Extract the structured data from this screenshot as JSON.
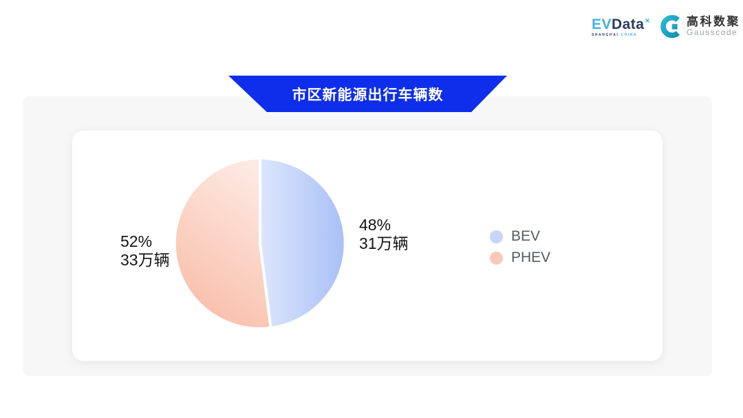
{
  "logos": {
    "evdata": {
      "part1": "EV",
      "part2": "Data",
      "sup": "×",
      "tagline_dark": "SHANGHAI",
      "tagline_light": "CHINA"
    },
    "gausscode": {
      "name_cn": "高科数聚",
      "name_en": "Gausscode"
    }
  },
  "banner": {
    "title": "市区新能源出行车辆数",
    "color": "#0e2eec"
  },
  "chart_data": {
    "type": "pie",
    "title": "市区新能源出行车辆数",
    "categories": [
      "BEV",
      "PHEV"
    ],
    "values_percent": [
      48,
      52
    ],
    "values": [
      31,
      33
    ],
    "unit": "万辆",
    "start_angle": "top",
    "direction": "clockwise",
    "legend_position": "right",
    "colors": {
      "bev_gradient": [
        "#dde6fc",
        "#a9c0f7"
      ],
      "phev_gradient": [
        "#fdeae2",
        "#f9bda9"
      ]
    }
  },
  "labels": {
    "bev_percent": "48%",
    "bev_value": "31万辆",
    "phev_percent": "52%",
    "phev_value": "33万辆"
  },
  "legend": [
    {
      "label": "BEV",
      "color": "#c7d5f9"
    },
    {
      "label": "PHEV",
      "color": "#f9c8b8"
    }
  ]
}
